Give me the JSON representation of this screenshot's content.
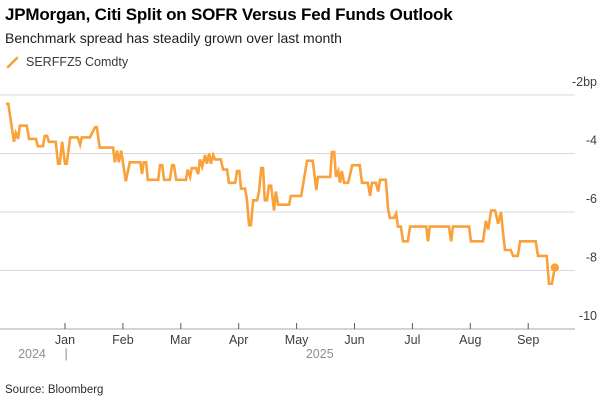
{
  "header": {
    "title": "JPMorgan, Citi Split on SOFR Versus Fed Funds Outlook",
    "subtitle": "Benchmark spread has steadily grown over last month"
  },
  "legend": {
    "label": "SERFFZ5 Comdty"
  },
  "footer": {
    "source": "Source: Bloomberg"
  },
  "colors": {
    "line": "#F9A13A",
    "grid": "#D9D9D9",
    "axis": "#A8A8A8",
    "tick": "#5A5A5A",
    "label": "#3D3D3D",
    "year_label": "#8F8F8F"
  },
  "chart_data": {
    "type": "line",
    "title": "JPMorgan, Citi Split on SOFR Versus Fed Funds Outlook",
    "series_name": "SERFFZ5 Comdty",
    "x_unit": "months since Jan 1 2025 (fractional, -1 = Dec 1 2024)",
    "y_unit": "bp",
    "xlim_months": [
      -1.12,
      8.81
    ],
    "ylim": [
      -10,
      -2
    ],
    "grid": "horizontal",
    "legend_position": "top-left",
    "end_dot": true,
    "y_ticks": [
      {
        "v": -2,
        "label": "-2bp"
      },
      {
        "v": -4,
        "label": "-4"
      },
      {
        "v": -6,
        "label": "-6"
      },
      {
        "v": -8,
        "label": "-8"
      },
      {
        "v": -10,
        "label": "-10"
      }
    ],
    "x_ticks": [
      {
        "m": 0,
        "label": "Jan"
      },
      {
        "m": 1,
        "label": "Feb"
      },
      {
        "m": 2,
        "label": "Mar"
      },
      {
        "m": 3,
        "label": "Apr"
      },
      {
        "m": 4,
        "label": "May"
      },
      {
        "m": 5,
        "label": "Jun"
      },
      {
        "m": 6,
        "label": "Jul"
      },
      {
        "m": 7,
        "label": "Aug"
      },
      {
        "m": 8,
        "label": "Sep"
      }
    ],
    "year_labels": [
      {
        "label": "2024",
        "x_m": -0.57
      },
      {
        "label": "|",
        "x_m": 0.02
      },
      {
        "label": "2025",
        "x_m": 4.4
      }
    ],
    "points": [
      [
        -1.02,
        -2.3
      ],
      [
        -0.98,
        -2.3
      ],
      [
        -0.88,
        -3.6
      ],
      [
        -0.85,
        -3.3
      ],
      [
        -0.81,
        -3.5
      ],
      [
        -0.78,
        -3.05
      ],
      [
        -0.66,
        -3.05
      ],
      [
        -0.62,
        -3.5
      ],
      [
        -0.5,
        -3.5
      ],
      [
        -0.47,
        -3.75
      ],
      [
        -0.38,
        -3.75
      ],
      [
        -0.35,
        -3.4
      ],
      [
        -0.31,
        -3.4
      ],
      [
        -0.28,
        -3.6
      ],
      [
        -0.16,
        -3.6
      ],
      [
        -0.12,
        -4.35
      ],
      [
        -0.09,
        -4.35
      ],
      [
        -0.05,
        -3.6
      ],
      [
        0.0,
        -4.35
      ],
      [
        0.03,
        -4.35
      ],
      [
        0.09,
        -3.45
      ],
      [
        0.22,
        -3.45
      ],
      [
        0.26,
        -3.7
      ],
      [
        0.29,
        -3.45
      ],
      [
        0.43,
        -3.45
      ],
      [
        0.52,
        -3.1
      ],
      [
        0.55,
        -3.1
      ],
      [
        0.6,
        -3.8
      ],
      [
        0.69,
        -3.8
      ],
      [
        0.83,
        -3.8
      ],
      [
        0.86,
        -4.3
      ],
      [
        0.9,
        -3.9
      ],
      [
        0.93,
        -4.3
      ],
      [
        0.97,
        -3.9
      ],
      [
        1.0,
        -4.3
      ],
      [
        1.05,
        -4.95
      ],
      [
        1.12,
        -4.3
      ],
      [
        1.3,
        -4.3
      ],
      [
        1.33,
        -4.7
      ],
      [
        1.36,
        -4.3
      ],
      [
        1.4,
        -4.3
      ],
      [
        1.43,
        -4.9
      ],
      [
        1.61,
        -4.9
      ],
      [
        1.64,
        -4.4
      ],
      [
        1.68,
        -4.4
      ],
      [
        1.71,
        -4.9
      ],
      [
        1.81,
        -4.9
      ],
      [
        1.85,
        -4.4
      ],
      [
        1.88,
        -4.4
      ],
      [
        1.92,
        -4.9
      ],
      [
        2.09,
        -4.9
      ],
      [
        2.12,
        -4.55
      ],
      [
        2.16,
        -4.8
      ],
      [
        2.19,
        -4.5
      ],
      [
        2.26,
        -4.5
      ],
      [
        2.3,
        -4.7
      ],
      [
        2.33,
        -4.2
      ],
      [
        2.37,
        -4.45
      ],
      [
        2.42,
        -4.05
      ],
      [
        2.45,
        -4.35
      ],
      [
        2.49,
        -4.0
      ],
      [
        2.52,
        -4.35
      ],
      [
        2.56,
        -4.05
      ],
      [
        2.59,
        -4.2
      ],
      [
        2.69,
        -4.2
      ],
      [
        2.73,
        -4.55
      ],
      [
        2.8,
        -4.55
      ],
      [
        2.83,
        -5.0
      ],
      [
        2.94,
        -5.0
      ],
      [
        2.97,
        -4.6
      ],
      [
        3.01,
        -4.6
      ],
      [
        3.04,
        -5.2
      ],
      [
        3.11,
        -5.2
      ],
      [
        3.14,
        -5.55
      ],
      [
        3.18,
        -6.45
      ],
      [
        3.21,
        -6.45
      ],
      [
        3.25,
        -5.6
      ],
      [
        3.32,
        -5.6
      ],
      [
        3.35,
        -5.3
      ],
      [
        3.39,
        -4.5
      ],
      [
        3.42,
        -4.5
      ],
      [
        3.45,
        -5.6
      ],
      [
        3.49,
        -5.6
      ],
      [
        3.52,
        -5.1
      ],
      [
        3.56,
        -5.1
      ],
      [
        3.61,
        -5.95
      ],
      [
        3.64,
        -5.3
      ],
      [
        3.68,
        -5.75
      ],
      [
        3.87,
        -5.75
      ],
      [
        3.9,
        -5.45
      ],
      [
        4.08,
        -5.45
      ],
      [
        4.13,
        -4.85
      ],
      [
        4.18,
        -4.25
      ],
      [
        4.28,
        -4.25
      ],
      [
        4.34,
        -5.25
      ],
      [
        4.37,
        -4.8
      ],
      [
        4.58,
        -4.8
      ],
      [
        4.61,
        -3.95
      ],
      [
        4.65,
        -3.95
      ],
      [
        4.68,
        -4.8
      ],
      [
        4.72,
        -4.6
      ],
      [
        4.75,
        -5.0
      ],
      [
        4.78,
        -4.6
      ],
      [
        4.82,
        -5.0
      ],
      [
        4.89,
        -5.0
      ],
      [
        4.92,
        -4.75
      ],
      [
        4.96,
        -4.4
      ],
      [
        5.09,
        -4.4
      ],
      [
        5.13,
        -5.0
      ],
      [
        5.23,
        -5.0
      ],
      [
        5.27,
        -5.45
      ],
      [
        5.3,
        -5.0
      ],
      [
        5.37,
        -5.0
      ],
      [
        5.41,
        -5.3
      ],
      [
        5.44,
        -4.9
      ],
      [
        5.54,
        -4.9
      ],
      [
        5.58,
        -5.9
      ],
      [
        5.61,
        -6.2
      ],
      [
        5.68,
        -6.2
      ],
      [
        5.72,
        -6.05
      ],
      [
        5.75,
        -6.5
      ],
      [
        5.8,
        -6.5
      ],
      [
        5.84,
        -7.0
      ],
      [
        5.92,
        -7.0
      ],
      [
        5.96,
        -6.5
      ],
      [
        6.24,
        -6.5
      ],
      [
        6.27,
        -7.0
      ],
      [
        6.3,
        -6.5
      ],
      [
        6.63,
        -6.5
      ],
      [
        6.67,
        -7.0
      ],
      [
        6.7,
        -6.5
      ],
      [
        6.98,
        -6.5
      ],
      [
        7.01,
        -7.0
      ],
      [
        7.22,
        -7.0
      ],
      [
        7.27,
        -6.3
      ],
      [
        7.31,
        -6.6
      ],
      [
        7.36,
        -5.95
      ],
      [
        7.43,
        -5.95
      ],
      [
        7.48,
        -6.4
      ],
      [
        7.53,
        -6.0
      ],
      [
        7.56,
        -6.6
      ],
      [
        7.6,
        -7.3
      ],
      [
        7.7,
        -7.3
      ],
      [
        7.74,
        -7.5
      ],
      [
        7.82,
        -7.5
      ],
      [
        7.86,
        -7.0
      ],
      [
        8.13,
        -7.0
      ],
      [
        8.17,
        -7.5
      ],
      [
        8.32,
        -7.5
      ],
      [
        8.36,
        -8.45
      ],
      [
        8.41,
        -8.45
      ],
      [
        8.46,
        -7.9
      ]
    ]
  }
}
